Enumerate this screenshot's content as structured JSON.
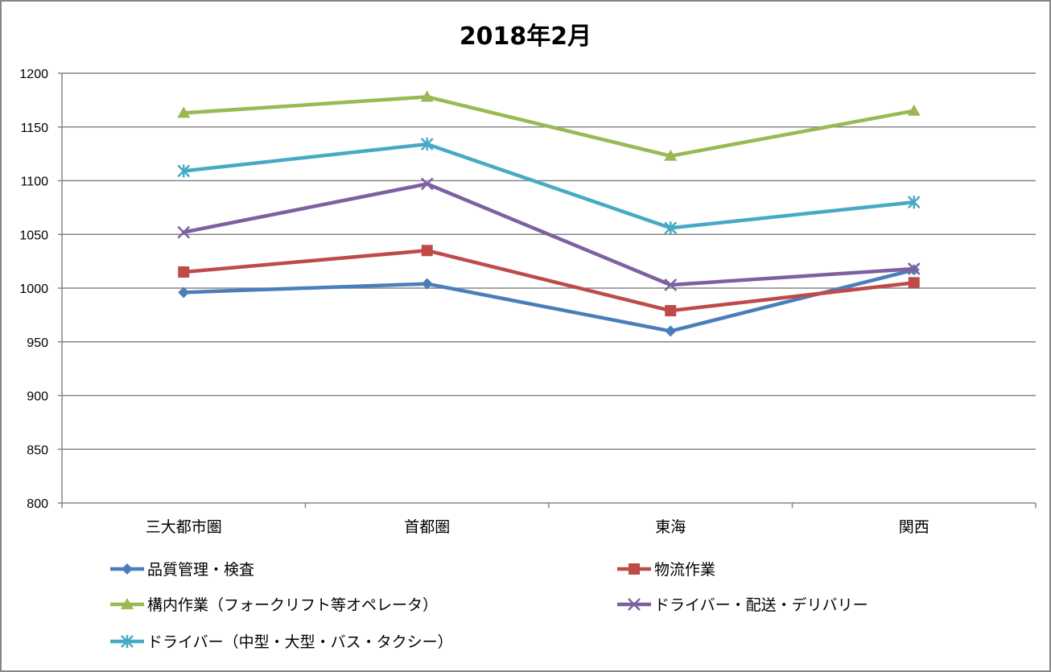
{
  "chart_data": {
    "type": "line",
    "title": "2018年2月",
    "xlabel": "",
    "ylabel": "",
    "categories": [
      "三大都市圏",
      "首都圏",
      "東海",
      "関西"
    ],
    "ylim": [
      800,
      1200
    ],
    "yticks": [
      800,
      850,
      900,
      950,
      1000,
      1050,
      1100,
      1150,
      1200
    ],
    "grid": true,
    "legend_position": "bottom",
    "series": [
      {
        "name": "品質管理・検査",
        "color": "#4A7EBB",
        "marker": "diamond",
        "values": [
          996,
          1004,
          960,
          1017
        ]
      },
      {
        "name": "物流作業",
        "color": "#BE4B48",
        "marker": "square",
        "values": [
          1015,
          1035,
          979,
          1005
        ]
      },
      {
        "name": "構内作業（フォークリフト等オペレータ）",
        "color": "#98B954",
        "marker": "triangle",
        "values": [
          1163,
          1178,
          1123,
          1165
        ]
      },
      {
        "name": "ドライバー・配送・デリバリー",
        "color": "#7D60A0",
        "marker": "x",
        "values": [
          1052,
          1097,
          1003,
          1018
        ]
      },
      {
        "name": "ドライバー（中型・大型・バス・タクシー）",
        "color": "#46AAC5",
        "marker": "star",
        "values": [
          1109,
          1134,
          1056,
          1080
        ]
      }
    ]
  }
}
